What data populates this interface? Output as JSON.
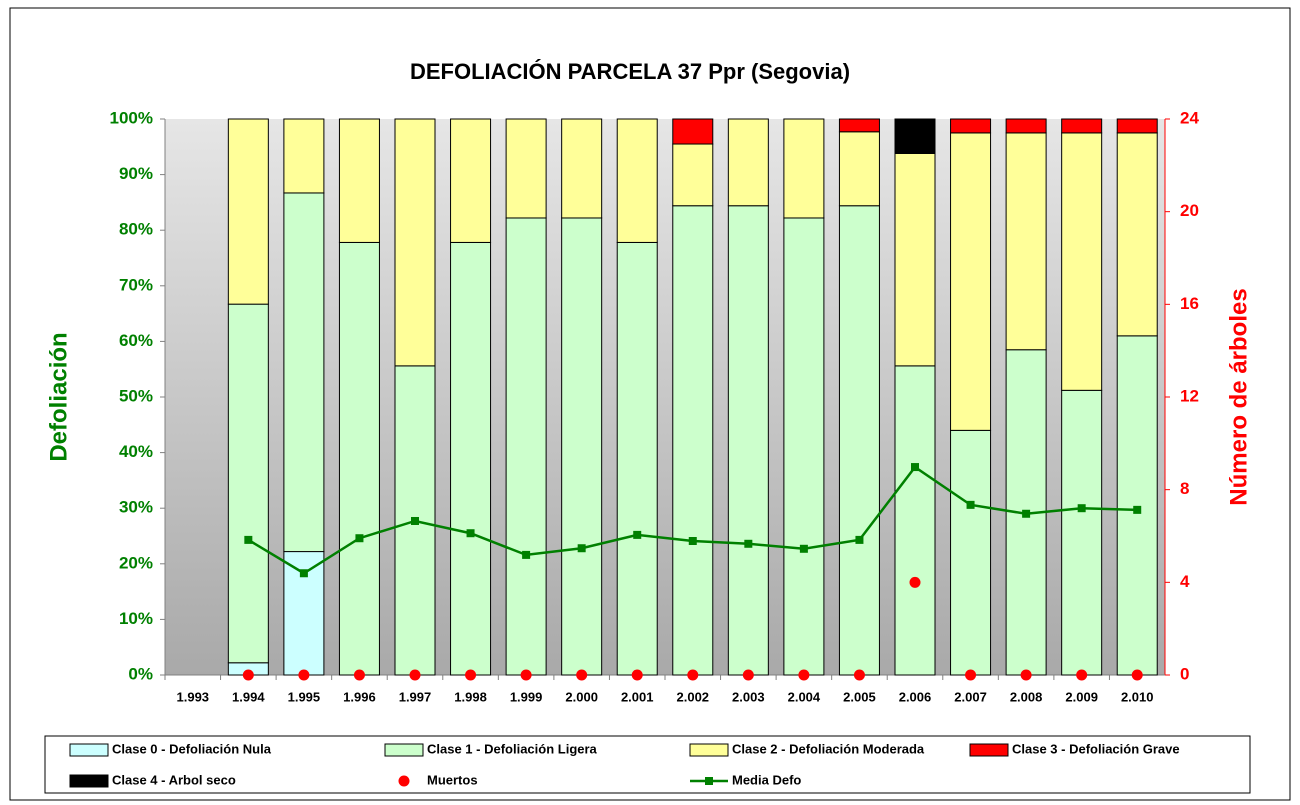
{
  "chart_data": {
    "type": "bar",
    "stacked": true,
    "title": "DEFOLIACIÓN PARCELA 37 Ppr (Segovia)",
    "y_label": "Defoliación",
    "y2_label": "Número de árboles",
    "categories": [
      "1.993",
      "1.994",
      "1.995",
      "1.996",
      "1.997",
      "1.998",
      "1.999",
      "2.000",
      "2.001",
      "2.002",
      "2.003",
      "2.004",
      "2.005",
      "2.006",
      "2.007",
      "2.008",
      "2.009",
      "2.010"
    ],
    "series": [
      {
        "name": "Clase 0 - Defoliación Nula",
        "type": "bar",
        "color": "#ccffff",
        "values": [
          null,
          2.2,
          22.2,
          0,
          0,
          0,
          0,
          0,
          0,
          0,
          0,
          0,
          0,
          0,
          0,
          0,
          0,
          0
        ]
      },
      {
        "name": "Clase 1 - Defoliación Ligera",
        "type": "bar",
        "color": "#ccffcc",
        "values": [
          null,
          64.5,
          64.5,
          77.8,
          55.6,
          77.8,
          82.2,
          82.2,
          77.8,
          84.4,
          84.4,
          82.2,
          84.4,
          55.6,
          44.0,
          58.5,
          51.2,
          61.0
        ]
      },
      {
        "name": "Clase 2 - Defoliación Moderada",
        "type": "bar",
        "color": "#ffff99",
        "values": [
          null,
          33.3,
          13.3,
          22.2,
          44.4,
          22.2,
          17.8,
          17.8,
          22.2,
          11.1,
          15.6,
          17.8,
          13.3,
          38.2,
          53.5,
          39.0,
          46.3,
          36.5
        ]
      },
      {
        "name": "Clase 3 - Defoliación Grave",
        "type": "bar",
        "color": "#ff0000",
        "values": [
          null,
          0,
          0,
          0,
          0,
          0,
          0,
          0,
          0,
          4.5,
          0,
          0,
          2.3,
          0,
          2.5,
          2.5,
          2.5,
          2.5
        ]
      },
      {
        "name": "Clase 4 - Arbol seco",
        "type": "bar",
        "color": "#000000",
        "values": [
          null,
          0,
          0,
          0,
          0,
          0,
          0,
          0,
          0,
          0,
          0,
          0,
          0,
          6.2,
          0,
          0,
          0,
          0
        ]
      },
      {
        "name": "Muertos",
        "type": "scatter",
        "axis": "y2",
        "color": "#ff0000",
        "values": [
          null,
          0,
          0,
          0,
          0,
          0,
          0,
          0,
          0,
          0,
          0,
          0,
          0,
          4,
          0,
          0,
          0,
          0
        ]
      },
      {
        "name": "Media Defo",
        "type": "line",
        "color": "#008000",
        "values": [
          null,
          24.3,
          18.3,
          24.6,
          27.7,
          25.5,
          21.6,
          22.8,
          25.2,
          24.1,
          23.6,
          22.7,
          24.3,
          37.4,
          30.6,
          29.0,
          30.0,
          29.7
        ]
      }
    ],
    "ylim": [
      0,
      100
    ],
    "yticks": [
      {
        "value": 0,
        "label": "0%"
      },
      {
        "value": 10,
        "label": "10%"
      },
      {
        "value": 20,
        "label": "20%"
      },
      {
        "value": 30,
        "label": "30%"
      },
      {
        "value": 40,
        "label": "40%"
      },
      {
        "value": 50,
        "label": "50%"
      },
      {
        "value": 60,
        "label": "60%"
      },
      {
        "value": 70,
        "label": "70%"
      },
      {
        "value": 80,
        "label": "80%"
      },
      {
        "value": 90,
        "label": "90%"
      },
      {
        "value": 100,
        "label": "100%"
      }
    ],
    "y2lim": [
      0,
      24
    ],
    "y2ticks": [
      0,
      4,
      8,
      12,
      16,
      20,
      24
    ],
    "grid": false,
    "legend": "bottom"
  }
}
